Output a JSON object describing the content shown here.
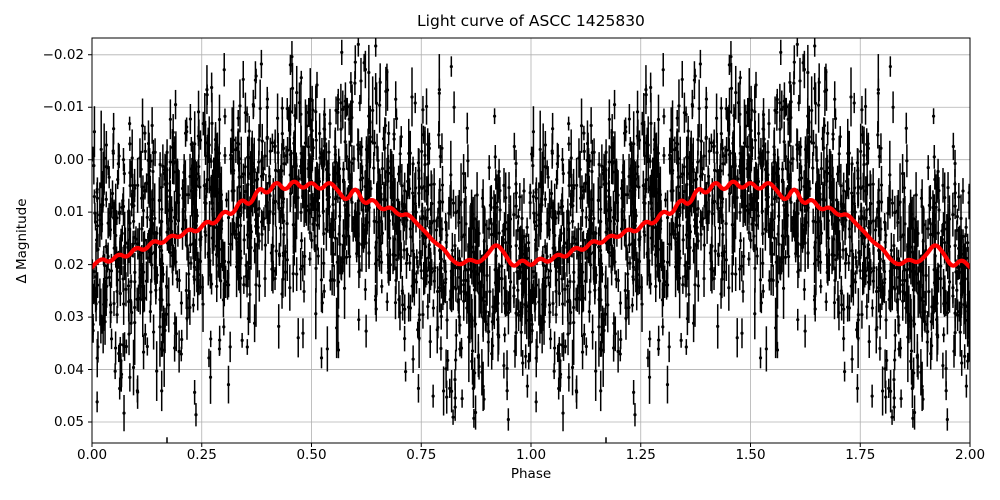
{
  "chart_data": {
    "type": "scatter",
    "title": "Light curve of ASCC 1425830",
    "xlabel": "Phase",
    "ylabel": "Δ Magnitude",
    "xlim": [
      0.0,
      2.0
    ],
    "ylim": {
      "top": -0.0232,
      "bottom": 0.054
    },
    "y_axis_inverted": true,
    "grid": true,
    "grid_color": "#b0b0b0",
    "axis_color": "#000000",
    "background_color": "#ffffff",
    "x_ticks": [
      0.0,
      0.25,
      0.5,
      0.75,
      1.0,
      1.25,
      1.5,
      1.75,
      2.0
    ],
    "x_tick_labels": [
      "0.00",
      "0.25",
      "0.50",
      "0.75",
      "1.00",
      "1.25",
      "1.50",
      "1.75",
      "2.00"
    ],
    "y_ticks": [
      -0.02,
      -0.01,
      0.0,
      0.01,
      0.02,
      0.03,
      0.04,
      0.05
    ],
    "y_tick_labels": [
      "−0.02",
      "−0.01",
      "0.00",
      "0.01",
      "0.02",
      "0.03",
      "0.04",
      "0.05"
    ],
    "series": [
      {
        "name": "observed-points",
        "style": "errorbar",
        "color": "#000000",
        "marker": "point",
        "marker_radius": 1.6,
        "bar_line_width": 1.5,
        "cycles": [
          0,
          1
        ],
        "generated": {
          "seed": 7,
          "n_points_per_cycle": 1500,
          "noise_sigma": 0.0115,
          "errorbar_base": 0.0013,
          "errorbar_scale": 0.002,
          "long_bar_fraction": 0.08,
          "long_bar_extra": 0.003,
          "outlier_fraction": 0.06,
          "outlier_extra_sigma": 0.008,
          "follows_series": "smoothed-light-curve"
        }
      },
      {
        "name": "smoothed-light-curve",
        "style": "line",
        "color": "#ff0000",
        "line_width": 4.2,
        "cycles": [
          0,
          1
        ],
        "phase": [
          0,
          0.02,
          0.04,
          0.06,
          0.08,
          0.1,
          0.12,
          0.14,
          0.16,
          0.18,
          0.2,
          0.22,
          0.24,
          0.26,
          0.28,
          0.3,
          0.32,
          0.34,
          0.36,
          0.38,
          0.4,
          0.42,
          0.44,
          0.46,
          0.48,
          0.5,
          0.52,
          0.54,
          0.56,
          0.58,
          0.6,
          0.62,
          0.64,
          0.66,
          0.68,
          0.7,
          0.72,
          0.74,
          0.76,
          0.78,
          0.8,
          0.82,
          0.84,
          0.86,
          0.88,
          0.9,
          0.92,
          0.94,
          0.96,
          0.98,
          1
        ],
        "dmag": [
          0.0205,
          0.0185,
          0.0198,
          0.0178,
          0.0188,
          0.0165,
          0.0175,
          0.0152,
          0.0162,
          0.0142,
          0.015,
          0.013,
          0.014,
          0.0115,
          0.0125,
          0.0095,
          0.0108,
          0.0072,
          0.009,
          0.005,
          0.0068,
          0.0038,
          0.0062,
          0.0036,
          0.0058,
          0.004,
          0.006,
          0.004,
          0.0058,
          0.0082,
          0.0048,
          0.0088,
          0.0072,
          0.0098,
          0.0088,
          0.0108,
          0.0102,
          0.0122,
          0.0138,
          0.0158,
          0.0168,
          0.0192,
          0.0202,
          0.0188,
          0.0198,
          0.0182,
          0.0158,
          0.0178,
          0.0208,
          0.0188,
          0.0205
        ]
      }
    ]
  }
}
